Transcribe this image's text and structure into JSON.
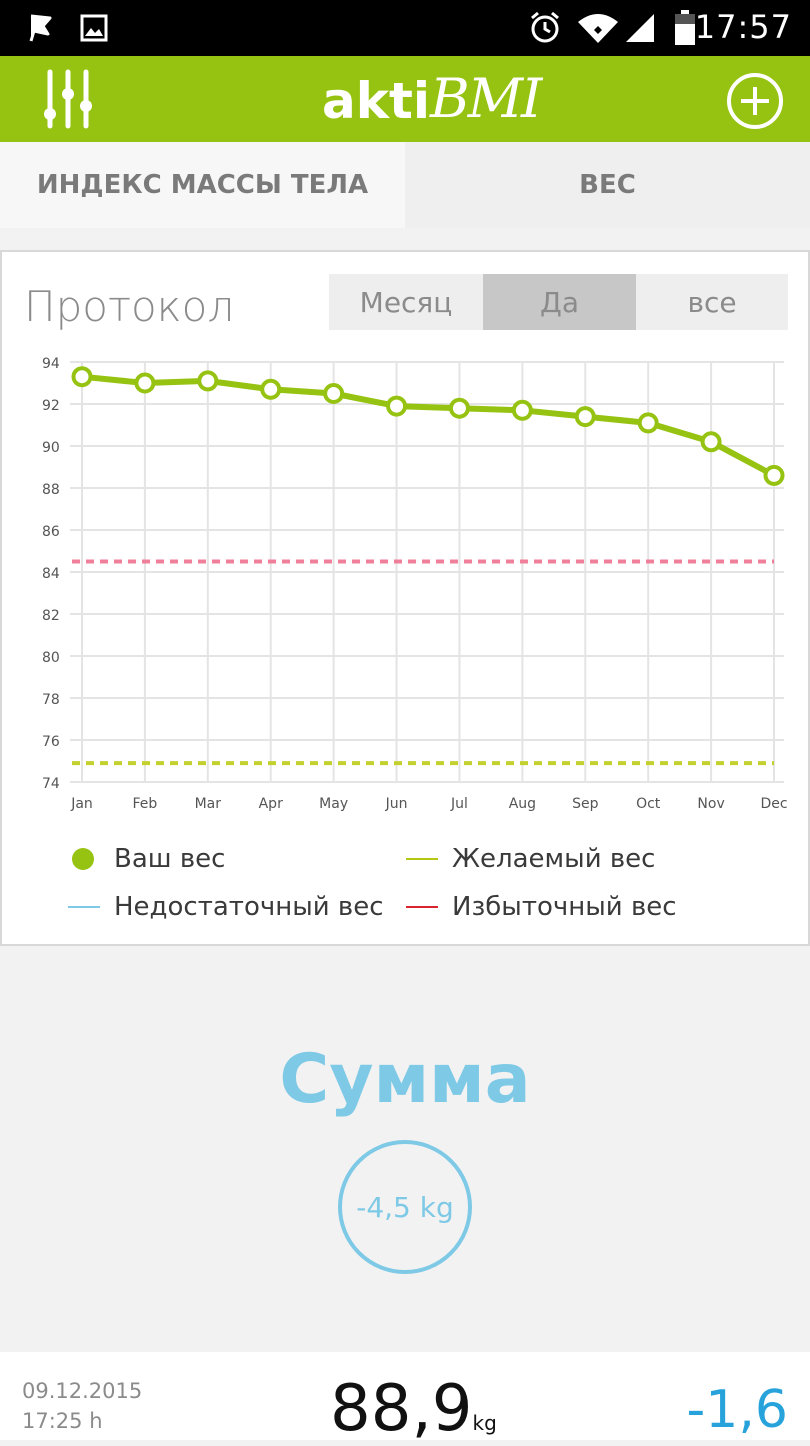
{
  "status_bar": {
    "time": "17:57",
    "icons": [
      "flag-icon",
      "image-icon",
      "alarm-icon",
      "wifi-icon",
      "signal-icon",
      "battery-icon"
    ]
  },
  "app_bar": {
    "logo_bold": "akti",
    "logo_italic": "BMI",
    "menu_icon": "sliders-icon",
    "add_icon": "plus-circle-icon"
  },
  "tabs": [
    {
      "label": "ИНДЕКС МАССЫ ТЕЛА",
      "active": true
    },
    {
      "label": "ВЕС",
      "active": false
    }
  ],
  "chart_card": {
    "title": "Протокол",
    "range_options": [
      {
        "label": "Месяц",
        "selected": false
      },
      {
        "label": "Да",
        "selected": true
      },
      {
        "label": "все",
        "selected": false
      }
    ],
    "legend": [
      {
        "label": "Ваш вес",
        "color": "#96c311",
        "marker": "dot"
      },
      {
        "label": "Желаемый вес",
        "color": "#b5c811",
        "marker": "line"
      },
      {
        "label": "Недостаточный вес",
        "color": "#7ec9e6",
        "marker": "line"
      },
      {
        "label": "Избыточный вес",
        "color": "#d9232f",
        "marker": "line"
      }
    ]
  },
  "chart_data": {
    "type": "line",
    "categories": [
      "Jan",
      "Feb",
      "Mar",
      "Apr",
      "May",
      "Jun",
      "Jul",
      "Aug",
      "Sep",
      "Oct",
      "Nov",
      "Dec"
    ],
    "series": [
      {
        "name": "Ваш вес",
        "color": "#96c311",
        "values": [
          93.3,
          93.0,
          93.1,
          92.7,
          92.5,
          91.9,
          91.8,
          91.7,
          91.4,
          91.1,
          90.2,
          88.6
        ]
      },
      {
        "name": "Желаемый вес",
        "color": "#c3d12e",
        "style": "dashed",
        "values": [
          74.9,
          74.9,
          74.9,
          74.9,
          74.9,
          74.9,
          74.9,
          74.9,
          74.9,
          74.9,
          74.9,
          74.9
        ]
      },
      {
        "name": "Избыточный вес",
        "color": "#f07f9b",
        "style": "dashed",
        "values": [
          84.5,
          84.5,
          84.5,
          84.5,
          84.5,
          84.5,
          84.5,
          84.5,
          84.5,
          84.5,
          84.5,
          84.5
        ]
      }
    ],
    "y_ticks": [
      74,
      76,
      78,
      80,
      82,
      84,
      86,
      88,
      90,
      92,
      94
    ],
    "ylim": [
      74,
      94
    ],
    "grid": true,
    "legend_placement": "bottom"
  },
  "summary": {
    "title": "Сумма",
    "total": "-4,5 kg"
  },
  "entry": {
    "date": "09.12.2015",
    "time": "17:25 h",
    "weight": "88,9",
    "unit": "kg",
    "delta": "-1,6"
  }
}
